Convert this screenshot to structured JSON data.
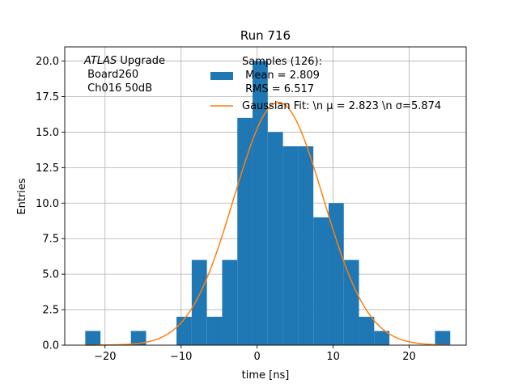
{
  "chart_data": {
    "type": "bar",
    "title": "Run 716",
    "xlabel": "time [ns]",
    "ylabel": "Entries",
    "xlim": [
      -25.3,
      27.5
    ],
    "ylim": [
      0,
      21
    ],
    "grid": true,
    "x_ticks": [
      -20,
      -10,
      0,
      10,
      20
    ],
    "x_tick_labels": [
      "−20",
      "−10",
      "0",
      "10",
      "20"
    ],
    "y_ticks": [
      0,
      2.5,
      5,
      7.5,
      10,
      12.5,
      15,
      17.5,
      20
    ],
    "y_tick_labels": [
      "0.0",
      "2.5",
      "5.0",
      "7.5",
      "10.0",
      "12.5",
      "15.0",
      "17.5",
      "20.0"
    ],
    "histogram": {
      "name": "Samples (126):\n Mean = 2.809\n RMS = 6.517",
      "color": "#1f77b4",
      "bin_edges": [
        -22.6,
        -20.6,
        -18.6,
        -16.6,
        -14.6,
        -12.6,
        -10.6,
        -8.6,
        -6.6,
        -4.6,
        -2.6,
        -0.6,
        1.4,
        3.4,
        5.4,
        7.4,
        9.4,
        11.4,
        13.4,
        15.4,
        17.4,
        19.4,
        21.4,
        23.4,
        25.4
      ],
      "counts": [
        1,
        0,
        0,
        1,
        0,
        0,
        2,
        6,
        2,
        6,
        16,
        20,
        15,
        14,
        14,
        9,
        10,
        6,
        2,
        1,
        0,
        0,
        0,
        1
      ]
    },
    "fit": {
      "name": "Gaussian Fit: \\n μ = 2.823 \\n σ=5.874",
      "color": "#ff7f0e",
      "mu": 2.823,
      "sigma": 5.874,
      "amplitude": 17.1,
      "x_range": [
        -22.6,
        25.4
      ]
    },
    "annotation": {
      "italic": "ATLAS",
      "rest": " Upgrade",
      "line2": " Board260",
      "line3": " Ch016 50dB"
    },
    "legend_location": "upper-right"
  }
}
